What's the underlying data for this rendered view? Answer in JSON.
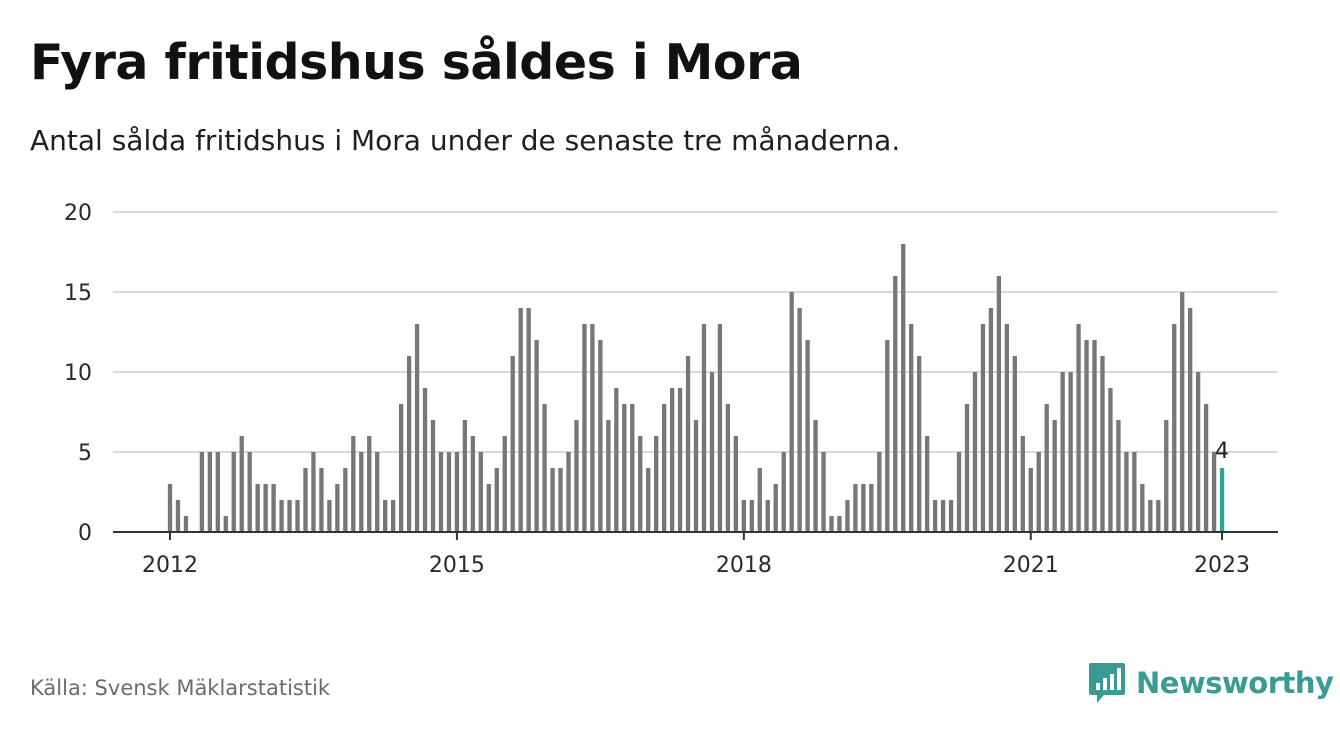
{
  "title": "Fyra fritidshus såldes i Mora",
  "subtitle": "Antal sålda fritidshus i Mora under de senaste tre månaderna.",
  "source": "Källa: Svensk Mäklarstatistik",
  "brand": {
    "name": "Newsworthy",
    "icon": "newsworthy-logo-icon",
    "color": "#3a9a94"
  },
  "chart_data": {
    "type": "bar",
    "title": "Fyra fritidshus såldes i Mora",
    "subtitle": "Antal sålda fritidshus i Mora under de senaste tre månaderna.",
    "xlabel": "",
    "ylabel": "",
    "start": "2012-01",
    "frequency": "monthly",
    "end": "2023-01",
    "ylim": [
      0,
      20
    ],
    "yticks": [
      0,
      5,
      10,
      15,
      20
    ],
    "xticks": [
      {
        "label": "2012",
        "date": "2012-01"
      },
      {
        "label": "2015",
        "date": "2015-01"
      },
      {
        "label": "2018",
        "date": "2018-01"
      },
      {
        "label": "2021",
        "date": "2021-01"
      },
      {
        "label": "2023",
        "date": "2023-01"
      }
    ],
    "grid": true,
    "legend": "none",
    "bar_color": "#76767b",
    "highlight_color": "#2aa69f",
    "highlight_last": true,
    "last_label": "4",
    "values": [
      3,
      2,
      1,
      0,
      5,
      5,
      5,
      1,
      5,
      6,
      5,
      3,
      3,
      3,
      2,
      2,
      2,
      4,
      5,
      4,
      2,
      3,
      4,
      6,
      5,
      6,
      5,
      2,
      2,
      8,
      11,
      13,
      9,
      7,
      5,
      5,
      5,
      7,
      6,
      5,
      3,
      4,
      6,
      11,
      14,
      14,
      12,
      8,
      4,
      4,
      5,
      7,
      13,
      13,
      12,
      7,
      9,
      8,
      8,
      6,
      4,
      6,
      8,
      9,
      9,
      11,
      7,
      13,
      10,
      13,
      8,
      6,
      2,
      2,
      4,
      2,
      3,
      5,
      15,
      14,
      12,
      7,
      5,
      1,
      1,
      2,
      3,
      3,
      3,
      5,
      12,
      16,
      18,
      13,
      11,
      6,
      2,
      2,
      2,
      5,
      8,
      10,
      13,
      14,
      16,
      13,
      11,
      6,
      4,
      5,
      8,
      7,
      10,
      10,
      13,
      12,
      12,
      11,
      9,
      7,
      5,
      5,
      3,
      2,
      2,
      7,
      13,
      15,
      14,
      10,
      8,
      5,
      4
    ]
  }
}
